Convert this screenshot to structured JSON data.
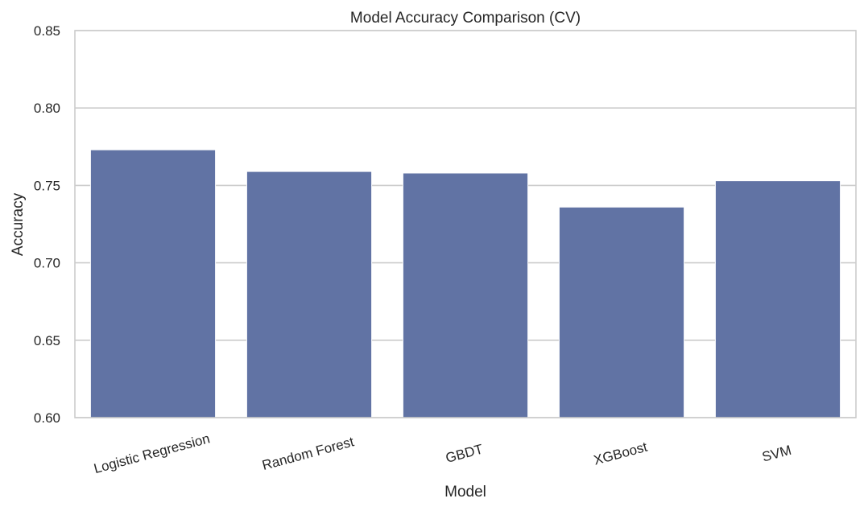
{
  "chart_data": {
    "type": "bar",
    "title": "Model Accuracy Comparison (CV)",
    "xlabel": "Model",
    "ylabel": "Accuracy",
    "categories": [
      "Logistic Regression",
      "Random Forest",
      "GBDT",
      "XGBoost",
      "SVM"
    ],
    "values": [
      0.773,
      0.759,
      0.758,
      0.736,
      0.753
    ],
    "ylim": [
      0.6,
      0.85
    ],
    "yticks": [
      0.6,
      0.65,
      0.7,
      0.75,
      0.8,
      0.85
    ],
    "ytick_labels": [
      "0.60",
      "0.65",
      "0.70",
      "0.75",
      "0.80",
      "0.85"
    ],
    "grid": "horizontal",
    "bar_color": "#6173a4",
    "grid_color": "#cccccc",
    "spine_color": "#cccccc"
  }
}
